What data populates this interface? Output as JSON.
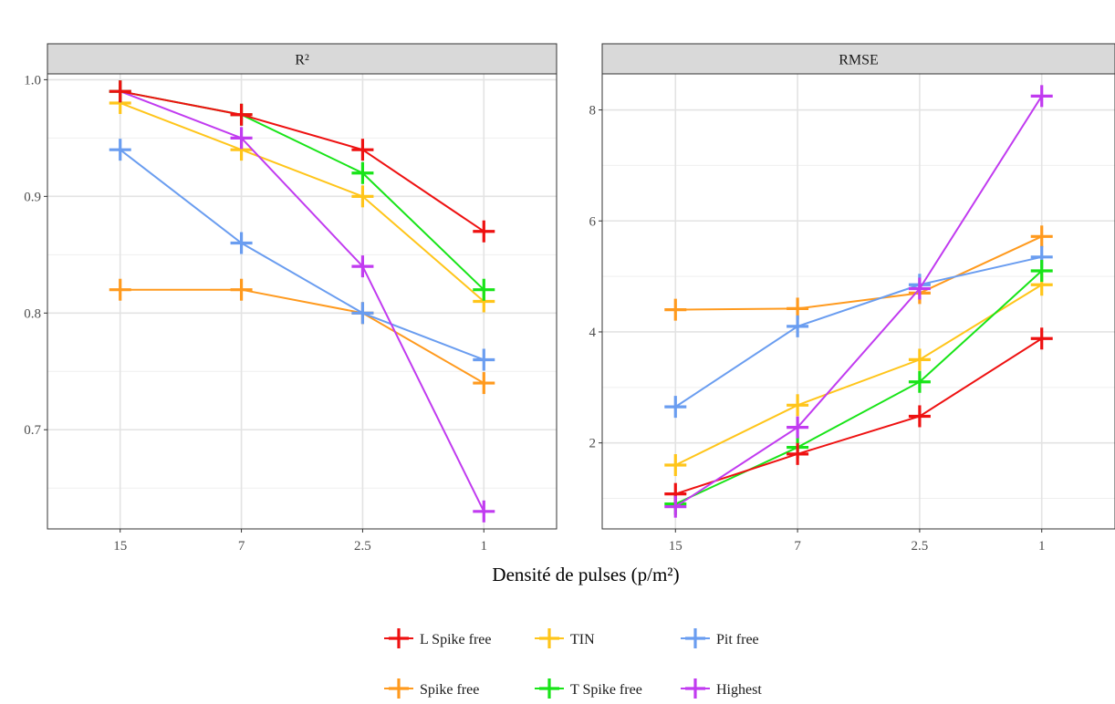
{
  "chart_data": {
    "type": "line",
    "xlabel": "Densité de pulses (p/m²)",
    "categories": [
      "15",
      "7",
      "2.5",
      "1"
    ],
    "legend": {
      "placement": "bottom",
      "rows": [
        [
          "L Spike free",
          "TIN",
          "Pit free"
        ],
        [
          "Spike free",
          "T Spike free",
          "Highest"
        ]
      ]
    },
    "series_styles": [
      {
        "name": "L Spike free",
        "color": "#ee1111"
      },
      {
        "name": "Spike free",
        "color": "#ff9a1e"
      },
      {
        "name": "TIN",
        "color": "#ffc51a"
      },
      {
        "name": "T Spike free",
        "color": "#18e418"
      },
      {
        "name": "Pit free",
        "color": "#6a9df0"
      },
      {
        "name": "Highest",
        "color": "#c13bf0"
      }
    ],
    "panels": [
      {
        "title": "R²",
        "ylim": [
          0.615,
          1.005
        ],
        "yticks": [
          0.7,
          0.8,
          0.9,
          1.0
        ],
        "yticklabels": [
          "0.7",
          "0.8",
          "0.9",
          "1.0"
        ],
        "grid": true,
        "series": [
          {
            "name": "Spike free",
            "values": [
              0.82,
              0.82,
              0.8,
              0.74
            ]
          },
          {
            "name": "Pit free",
            "values": [
              0.94,
              0.86,
              0.8,
              0.76
            ]
          },
          {
            "name": "TIN",
            "values": [
              0.98,
              0.94,
              0.9,
              0.81
            ]
          },
          {
            "name": "Highest",
            "values": [
              0.99,
              0.95,
              0.84,
              0.63
            ]
          },
          {
            "name": "T Spike free",
            "values": [
              0.99,
              0.97,
              0.92,
              0.82
            ]
          },
          {
            "name": "L Spike free",
            "values": [
              0.99,
              0.97,
              0.94,
              0.87
            ]
          }
        ]
      },
      {
        "title": "RMSE",
        "ylim": [
          0.45,
          8.65
        ],
        "yticks": [
          2,
          4,
          6,
          8
        ],
        "yticklabels": [
          "2",
          "4",
          "6",
          "8"
        ],
        "grid": true,
        "series": [
          {
            "name": "Spike free",
            "values": [
              4.4,
              4.42,
              4.7,
              5.72
            ]
          },
          {
            "name": "Pit free",
            "values": [
              2.65,
              4.1,
              4.85,
              5.35
            ]
          },
          {
            "name": "TIN",
            "values": [
              1.6,
              2.68,
              3.5,
              4.85
            ]
          },
          {
            "name": "T Spike free",
            "values": [
              0.9,
              1.92,
              3.1,
              5.1
            ]
          },
          {
            "name": "L Spike free",
            "values": [
              1.08,
              1.8,
              2.48,
              3.88
            ]
          },
          {
            "name": "Highest",
            "values": [
              0.85,
              2.28,
              4.78,
              8.25
            ]
          }
        ]
      }
    ]
  }
}
